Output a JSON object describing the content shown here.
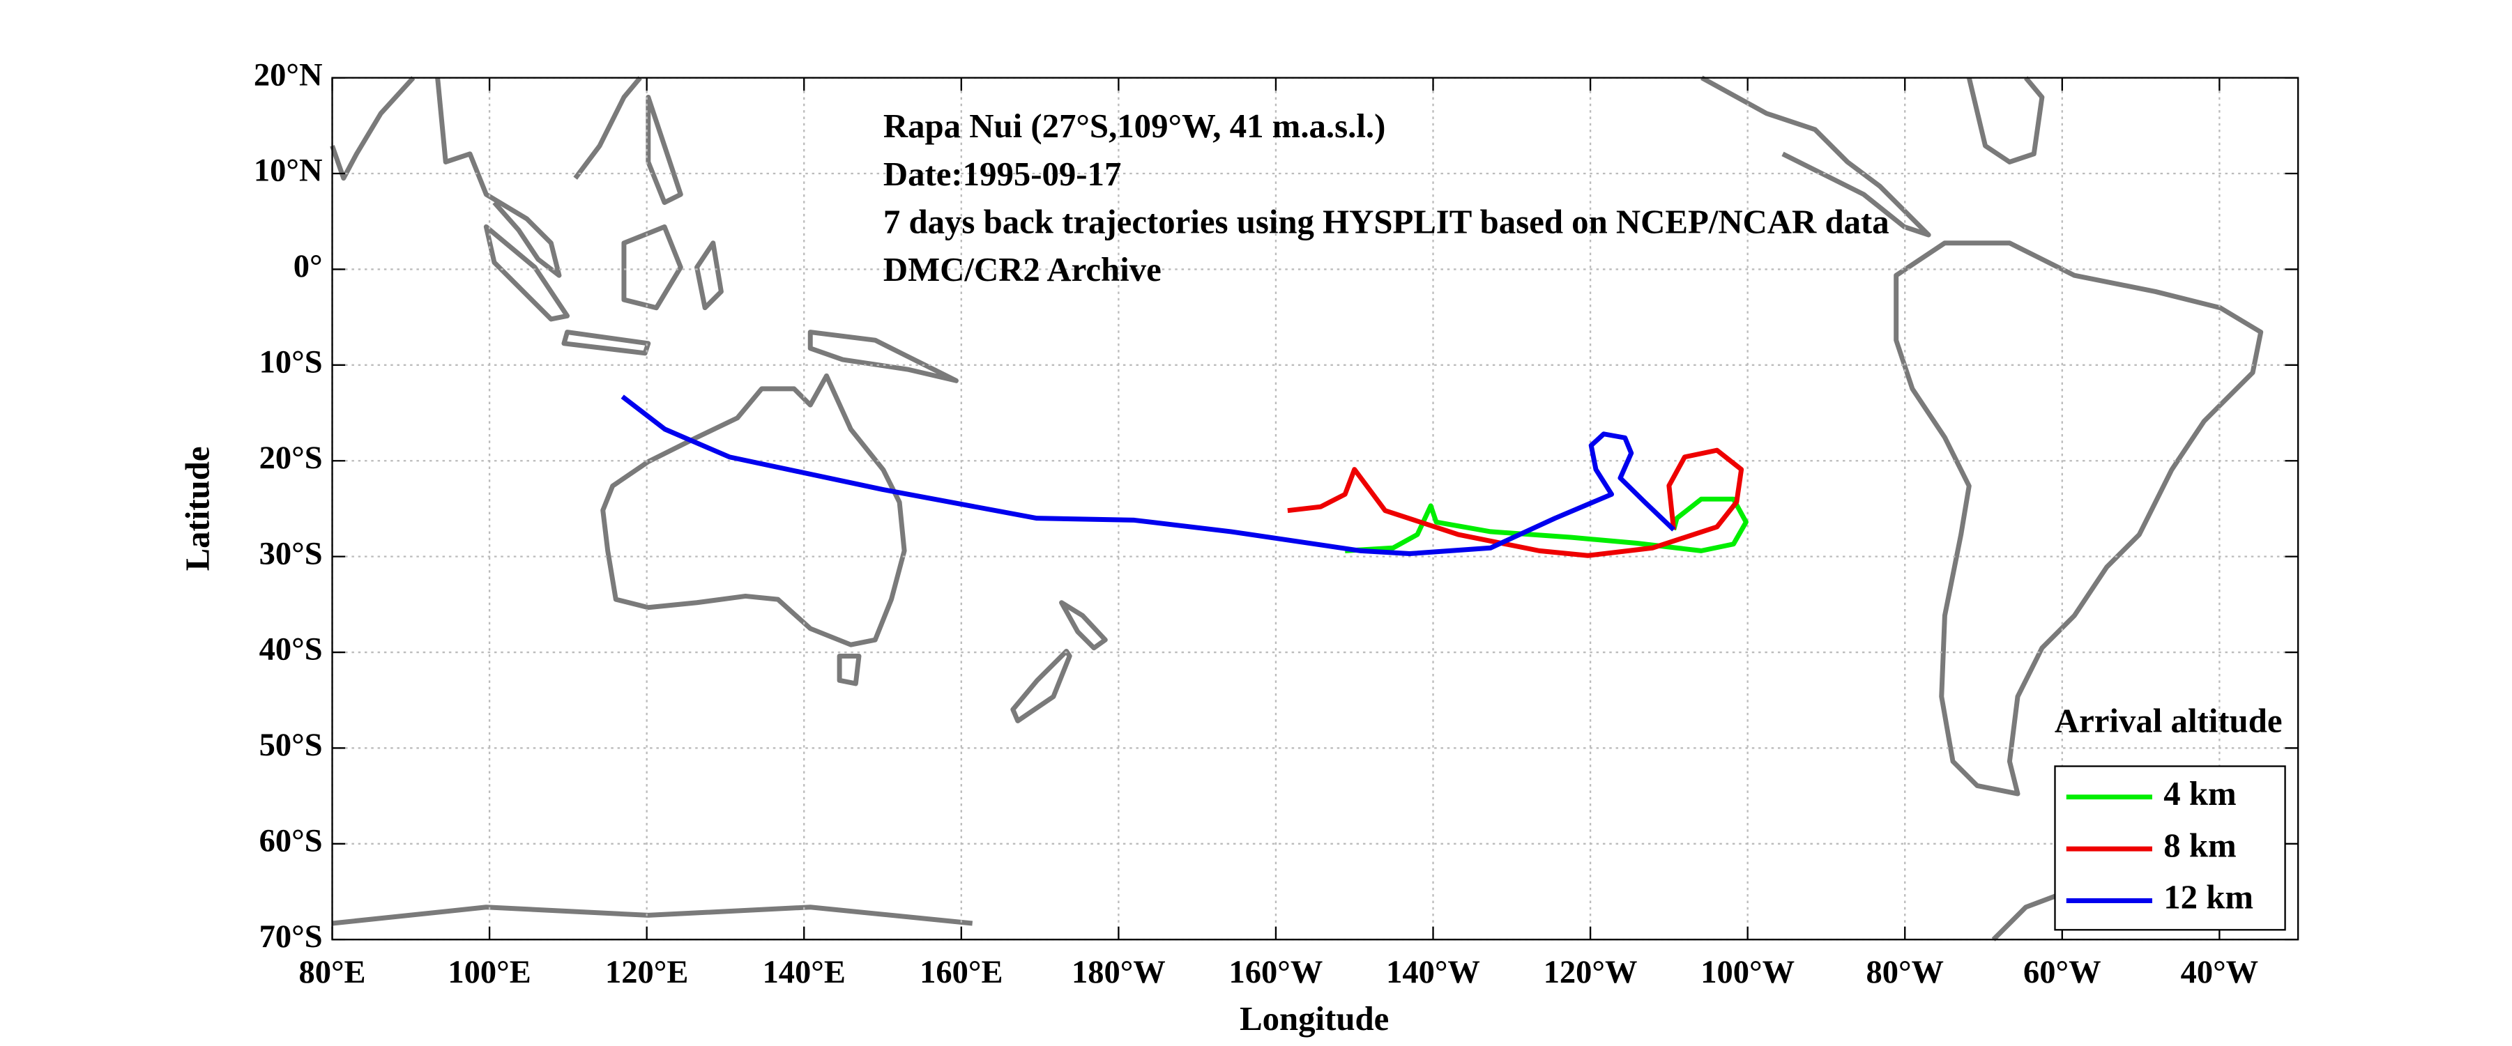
{
  "chart_data": {
    "type": "line",
    "annotations": [
      "Rapa Nui (27°S,109°W, 41 m.a.s.l.)",
      "Date:1995-09-17",
      "7 days back trajectories using HYSPLIT based on NCEP/NCAR data",
      "DMC/CR2 Archive"
    ],
    "xlabel": "Longitude",
    "ylabel": "Latitude",
    "xlim": [
      80,
      330
    ],
    "ylim": [
      -70,
      20
    ],
    "xticks": [
      {
        "value": 80,
        "label": "80°E"
      },
      {
        "value": 100,
        "label": "100°E"
      },
      {
        "value": 120,
        "label": "120°E"
      },
      {
        "value": 140,
        "label": "140°E"
      },
      {
        "value": 160,
        "label": "160°E"
      },
      {
        "value": 180,
        "label": "180°W"
      },
      {
        "value": 200,
        "label": "160°W"
      },
      {
        "value": 220,
        "label": "140°W"
      },
      {
        "value": 240,
        "label": "120°W"
      },
      {
        "value": 260,
        "label": "100°W"
      },
      {
        "value": 280,
        "label": "80°W"
      },
      {
        "value": 300,
        "label": "60°W"
      },
      {
        "value": 320,
        "label": "40°W"
      }
    ],
    "yticks": [
      {
        "value": -70,
        "label": "70°S"
      },
      {
        "value": -60,
        "label": "60°S"
      },
      {
        "value": -50,
        "label": "50°S"
      },
      {
        "value": -40,
        "label": "40°S"
      },
      {
        "value": -30,
        "label": "30°S"
      },
      {
        "value": -20,
        "label": "20°S"
      },
      {
        "value": -10,
        "label": "10°S"
      },
      {
        "value": 0,
        "label": "0°"
      },
      {
        "value": 10,
        "label": "10°N"
      },
      {
        "value": 20,
        "label": "20°N"
      }
    ],
    "grid": true,
    "legend_title": "Arrival altitude",
    "legend": "lower right",
    "series": [
      {
        "name": "4 km",
        "color": "#00ee00",
        "x": [
          208.8,
          214.9,
          218,
          219.7,
          220.4,
          227.3,
          237.6,
          245.8,
          254.1,
          258.2,
          259.8,
          258.2,
          254.1,
          251,
          250.6
        ],
        "values": [
          -29.4,
          -29.1,
          -27.7,
          -24.7,
          -26.4,
          -27.4,
          -28,
          -28.6,
          -29.4,
          -28.7,
          -26.4,
          -24,
          -24,
          -26,
          -27.2
        ]
      },
      {
        "name": "8 km",
        "color": "#ee0000",
        "x": [
          201.5,
          205.7,
          208.8,
          210,
          213.9,
          223.2,
          233.5,
          239.7,
          247.9,
          256.1,
          258.6,
          259.2,
          256.1,
          252,
          250,
          250.6
        ],
        "values": [
          -25.2,
          -24.8,
          -23.5,
          -20.9,
          -25.2,
          -27.7,
          -29.4,
          -29.9,
          -29.1,
          -26.9,
          -24.3,
          -20.9,
          -18.9,
          -19.6,
          -22.6,
          -27.2
        ]
      },
      {
        "name": "12 km",
        "color": "#0000ee",
        "x": [
          116.9,
          122.3,
          130.5,
          150,
          169.6,
          182,
          194.3,
          210.8,
          217,
          227.3,
          235.5,
          242.7,
          240.7,
          240.1,
          241.7,
          244.4,
          245.2,
          243.8,
          246.9,
          250.6
        ],
        "values": [
          -13.3,
          -16.7,
          -19.6,
          -23,
          -26,
          -26.2,
          -27.4,
          -29.4,
          -29.7,
          -29.1,
          -26,
          -23.5,
          -20.9,
          -18.4,
          -17.2,
          -17.6,
          -19.2,
          -21.8,
          -24.3,
          -27.2
        ]
      }
    ]
  }
}
